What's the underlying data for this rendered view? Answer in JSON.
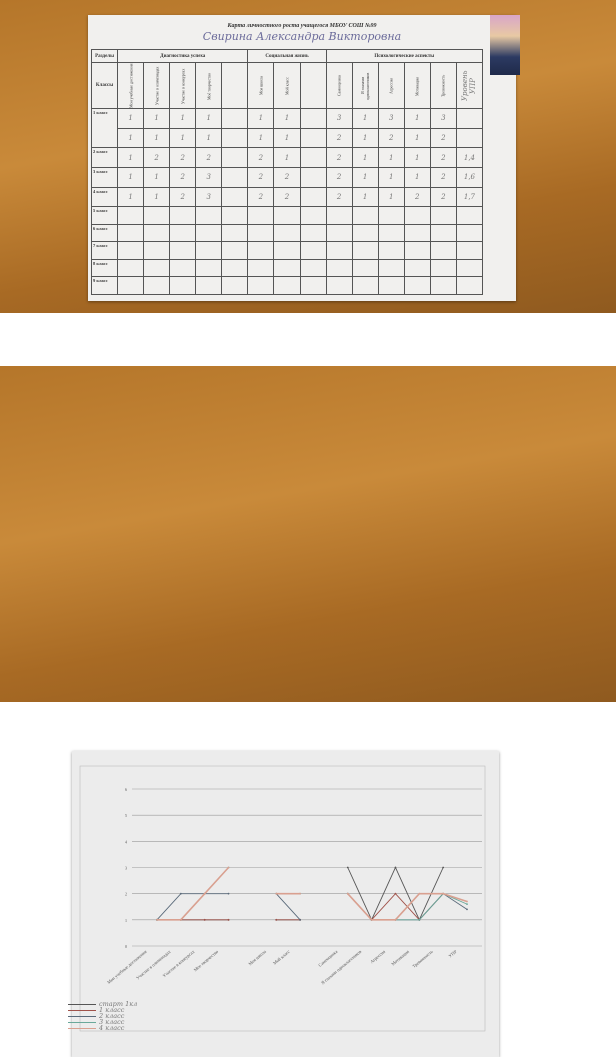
{
  "card": {
    "title": "Карта личностного роста учащегося МБОУ СОШ №99",
    "student_name": "Свирина Александра Викторовна",
    "header_sections": "Разделы",
    "header_classes": "Классы",
    "sections": [
      "Диагностика успеха",
      "Социальная жизнь",
      "Психологические аспекты"
    ],
    "columns": [
      "Мои учебные достижения",
      "Участие в олимпиадах",
      "Участие в конкурсах",
      "Моё творчество",
      "",
      "Моя школа",
      "Мой класс",
      "",
      "Самооценка",
      "Я глазами одноклассников",
      "Агрессия",
      "Мотивация",
      "Тревожность",
      "Уровень УПР"
    ],
    "rows": [
      {
        "label": "1 класс",
        "cells": [
          "1",
          "1",
          "1",
          "1",
          "",
          "1",
          "1",
          "",
          "3",
          "1",
          "3",
          "1",
          "3",
          ""
        ]
      },
      {
        "label": "",
        "cells": [
          "1",
          "1",
          "1",
          "1",
          "",
          "1",
          "1",
          "",
          "2",
          "1",
          "2",
          "1",
          "2",
          ""
        ]
      },
      {
        "label": "2 класс",
        "cells": [
          "1",
          "2",
          "2",
          "2",
          "",
          "2",
          "1",
          "",
          "2",
          "1",
          "1",
          "1",
          "2",
          "1,4"
        ]
      },
      {
        "label": "3 класс",
        "cells": [
          "1",
          "1",
          "2",
          "3",
          "",
          "2",
          "2",
          "",
          "2",
          "1",
          "1",
          "1",
          "2",
          "1,6"
        ]
      },
      {
        "label": "4 класс",
        "cells": [
          "1",
          "1",
          "2",
          "3",
          "",
          "2",
          "2",
          "",
          "2",
          "1",
          "1",
          "2",
          "2",
          "1,7"
        ]
      },
      {
        "label": "5 класс",
        "cells": []
      },
      {
        "label": "6 класс",
        "cells": []
      },
      {
        "label": "7 класс",
        "cells": []
      },
      {
        "label": "8 класс",
        "cells": []
      },
      {
        "label": "9 класс",
        "cells": []
      }
    ]
  },
  "chart_data": {
    "type": "line",
    "categories": [
      "Мои учебные достижения",
      "Участие в олимпиадах",
      "Участие в конкурсах",
      "Мое творчество",
      "",
      "Моя школа",
      "Мой класс",
      "",
      "Самооценка",
      "Я глазами одноклассников",
      "Агрессия",
      "Мотивация",
      "Тревожность",
      "УПР"
    ],
    "ylim": [
      0,
      6
    ],
    "yticks": [
      "0",
      "1",
      "2",
      "3",
      "4",
      "5",
      "6"
    ],
    "grid": true,
    "legend_position": "bottom-left",
    "series": [
      {
        "name": "старт 1кл",
        "values": [
          1,
          1,
          1,
          1,
          null,
          1,
          1,
          null,
          3,
          1,
          3,
          1,
          3,
          null
        ],
        "color": "#555555"
      },
      {
        "name": "1 класс",
        "values": [
          1,
          1,
          1,
          1,
          null,
          1,
          1,
          null,
          2,
          1,
          2,
          1,
          2,
          null
        ],
        "color": "#a0524a"
      },
      {
        "name": "2 класс",
        "values": [
          1,
          2,
          2,
          2,
          null,
          2,
          1,
          null,
          2,
          1,
          1,
          1,
          2,
          1.4
        ],
        "color": "#5a6a7a"
      },
      {
        "name": "3 класс",
        "values": [
          1,
          1,
          2,
          3,
          null,
          2,
          2,
          null,
          2,
          1,
          1,
          1,
          2,
          1.6
        ],
        "color": "#6aa89a"
      },
      {
        "name": "4 класс",
        "values": [
          1,
          1,
          2,
          3,
          null,
          2,
          2,
          null,
          2,
          1,
          1,
          2,
          2,
          1.7
        ],
        "color": "#d9a090"
      }
    ]
  }
}
